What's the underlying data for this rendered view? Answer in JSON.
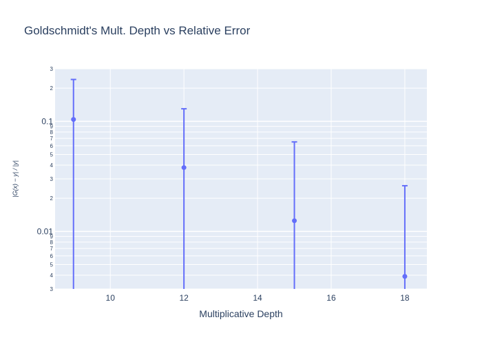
{
  "chart_data": {
    "type": "scatter",
    "title": "Goldschmidt's Mult. Depth vs Relative Error",
    "xlabel": "Multiplicative Depth",
    "ylabel": "|G(x) − y| / |y|",
    "y_scale": "log",
    "xlim": [
      8.5,
      18.6
    ],
    "ylim": [
      0.003,
      0.3
    ],
    "x_ticks": [
      10,
      12,
      14,
      16,
      18
    ],
    "y_major_ticks": [
      {
        "value": 0.01,
        "label": "0.01"
      },
      {
        "value": 0.1,
        "label": "0.1"
      }
    ],
    "y_minor_ticks": [
      {
        "value": 0.003,
        "label": "3"
      },
      {
        "value": 0.004,
        "label": "4"
      },
      {
        "value": 0.005,
        "label": "5"
      },
      {
        "value": 0.006,
        "label": "6"
      },
      {
        "value": 0.007,
        "label": "7"
      },
      {
        "value": 0.008,
        "label": "8"
      },
      {
        "value": 0.009,
        "label": "9"
      },
      {
        "value": 0.02,
        "label": "2"
      },
      {
        "value": 0.03,
        "label": "3"
      },
      {
        "value": 0.04,
        "label": "4"
      },
      {
        "value": 0.05,
        "label": "5"
      },
      {
        "value": 0.06,
        "label": "6"
      },
      {
        "value": 0.07,
        "label": "7"
      },
      {
        "value": 0.08,
        "label": "8"
      },
      {
        "value": 0.09,
        "label": "9"
      },
      {
        "value": 0.2,
        "label": "2"
      },
      {
        "value": 0.3,
        "label": "3"
      }
    ],
    "series": [
      {
        "x": [
          9,
          12,
          15,
          18
        ],
        "y": [
          0.104,
          0.038,
          0.0125,
          0.0039
        ],
        "error_upper": [
          0.24,
          0.13,
          0.065,
          0.026
        ],
        "error_lower": [
          0.001,
          0.001,
          0.001,
          0.001
        ]
      }
    ],
    "colors": {
      "series": "#636efa",
      "plot_bg": "#e5ecf6",
      "grid": "#ffffff",
      "text": "#2a3f5f"
    },
    "grid": true,
    "legend": "none"
  }
}
